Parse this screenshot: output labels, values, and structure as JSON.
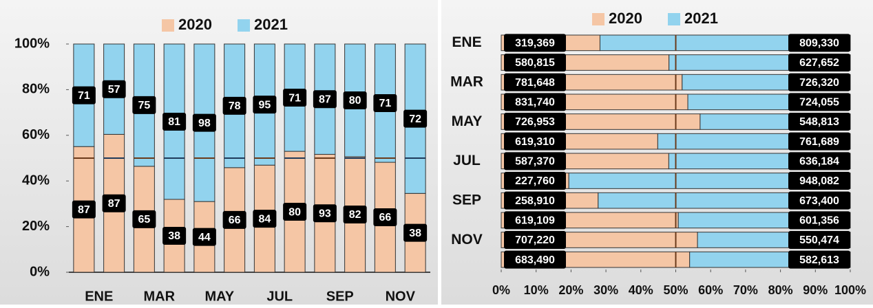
{
  "chart_data": [
    {
      "type": "bar",
      "orientation": "vertical",
      "stacking": "percent",
      "categories": [
        "ENE",
        null,
        "MAR",
        null,
        "MAY",
        null,
        "JUL",
        null,
        "SEP",
        null,
        "NOV",
        null
      ],
      "series": [
        {
          "name": "2020",
          "color": "#f5c6a5",
          "values": [
            87,
            87,
            65,
            38,
            44,
            66,
            84,
            80,
            93,
            82,
            66,
            38
          ]
        },
        {
          "name": "2021",
          "color": "#92d3ee",
          "values": [
            71,
            57,
            75,
            81,
            98,
            78,
            95,
            71,
            87,
            80,
            71,
            72
          ]
        }
      ],
      "ylim": [
        0,
        100
      ],
      "yticks": [
        {
          "value": 0,
          "label": "0%"
        },
        {
          "value": 20,
          "label": "20%"
        },
        {
          "value": 40,
          "label": "40%"
        },
        {
          "value": 60,
          "label": "60%"
        },
        {
          "value": 80,
          "label": "80%"
        },
        {
          "value": 100,
          "label": "100%"
        }
      ],
      "reference_line": 50,
      "legend": "top"
    },
    {
      "type": "bar",
      "orientation": "horizontal",
      "stacking": "percent",
      "categories": [
        "ENE",
        null,
        "MAR",
        null,
        "MAY",
        null,
        "JUL",
        null,
        "SEP",
        null,
        "NOV",
        null
      ],
      "series": [
        {
          "name": "2020",
          "color": "#f5c6a5",
          "values": [
            319369,
            580815,
            781648,
            831740,
            726953,
            619310,
            587370,
            227760,
            258910,
            619109,
            707220,
            683490
          ],
          "value_labels": [
            "319,369",
            "580,815",
            "781,648",
            "831,740",
            "726,953",
            "619,310",
            "587,370",
            "227,760",
            "258,910",
            "619,109",
            "707,220",
            "683,490"
          ]
        },
        {
          "name": "2021",
          "color": "#92d3ee",
          "values": [
            809330,
            627652,
            726320,
            724055,
            548813,
            761689,
            636184,
            948082,
            673400,
            601356,
            550474,
            582613
          ],
          "value_labels": [
            "809,330",
            "627,652",
            "726,320",
            "724,055",
            "548,813",
            "761,689",
            "636,184",
            "948,082",
            "673,400",
            "601,356",
            "550,474",
            "582,613"
          ]
        }
      ],
      "xlim": [
        0,
        100
      ],
      "xticks": [
        {
          "value": 0,
          "label": "0%"
        },
        {
          "value": 10,
          "label": "10%"
        },
        {
          "value": 20,
          "label": "20%"
        },
        {
          "value": 30,
          "label": "30%"
        },
        {
          "value": 40,
          "label": "40%"
        },
        {
          "value": 50,
          "label": "50%"
        },
        {
          "value": 60,
          "label": "60%"
        },
        {
          "value": 70,
          "label": "70%"
        },
        {
          "value": 80,
          "label": "80%"
        },
        {
          "value": 90,
          "label": "90%"
        },
        {
          "value": 100,
          "label": "100%"
        }
      ],
      "reference_line": 50,
      "legend": "top"
    }
  ]
}
